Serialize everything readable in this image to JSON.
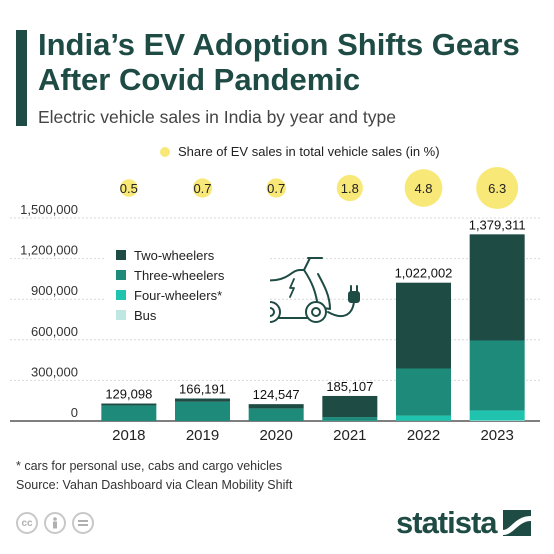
{
  "header": {
    "title": "India’s EV Adoption Shifts Gears After Covid Pandemic",
    "subtitle": "Electric vehicle sales in India by year and type",
    "share_legend": "Share of EV sales in total vehicle sales (in %)"
  },
  "chart_data": {
    "type": "bar",
    "stacked": true,
    "categories": [
      "2018",
      "2019",
      "2020",
      "2021",
      "2022",
      "2023"
    ],
    "series": [
      {
        "name": "Bus",
        "color": "#bfe7e2",
        "values": [
          0,
          0,
          0,
          1000,
          2000,
          4000
        ]
      },
      {
        "name": "Four-wheelers*",
        "color": "#20c4ae",
        "values": [
          0,
          0,
          0,
          3000,
          38000,
          74000
        ]
      },
      {
        "name": "Three-wheelers",
        "color": "#1d8a7a",
        "values": [
          115000,
          143000,
          93000,
          25000,
          348000,
          517000
        ]
      },
      {
        "name": "Two-wheelers",
        "color": "#1f4b45",
        "values": [
          14098,
          23191,
          31547,
          156107,
          634002,
          784311
        ]
      }
    ],
    "legend_order": [
      "Two-wheelers",
      "Three-wheelers",
      "Four-wheelers*",
      "Bus"
    ],
    "totals": [
      "129,098",
      "166,191",
      "124,547",
      "185,107",
      "1,022,002",
      "1,379,311"
    ],
    "total_values": [
      129098,
      166191,
      124547,
      185107,
      1022002,
      1379311
    ],
    "ev_share": [
      0.5,
      0.7,
      0.7,
      1.8,
      4.8,
      6.3
    ],
    "ev_share_labels": [
      "0.5",
      "0.7",
      "0.7",
      "1.8",
      "4.8",
      "6.3"
    ],
    "ev_share_color": "#f8e878",
    "ylim": [
      0,
      1500000
    ],
    "yticks": [
      0,
      300000,
      600000,
      900000,
      1200000,
      1500000
    ],
    "ytick_labels": [
      "0",
      "300,000",
      "600,000",
      "900,000",
      "1,200,000",
      "1,500,000"
    ],
    "grid": true,
    "legend_position": "top-left"
  },
  "footer": {
    "footnote": "* cars for personal use, cabs and cargo vehicles",
    "source": "Source: Vahan Dashboard via Clean Mobility Shift",
    "brand": "statista",
    "icons": [
      "cc-icon",
      "person-icon",
      "equal-icon"
    ]
  },
  "colors": {
    "title": "#1f4b45",
    "accent": "#1f4b45"
  }
}
